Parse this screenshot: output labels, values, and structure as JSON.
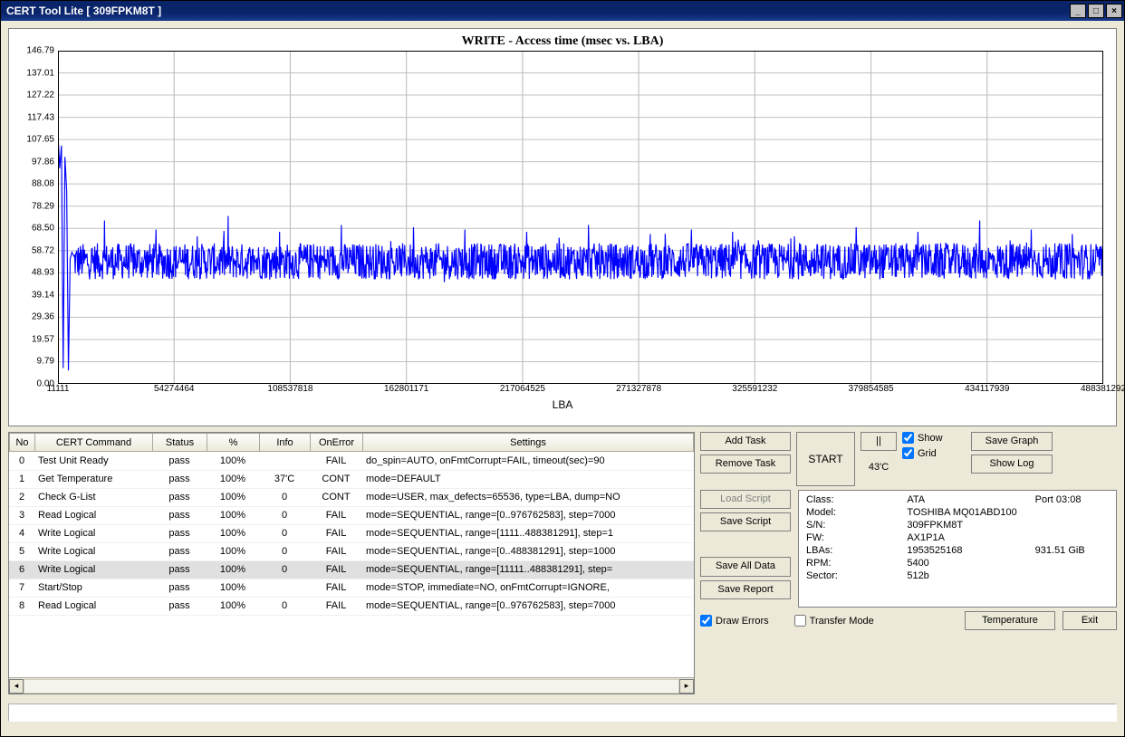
{
  "window": {
    "title": "CERT Tool Lite [ 309FPKM8T ]"
  },
  "chart": {
    "type": "scatter-line",
    "title": "WRITE - Access time (msec vs. LBA)",
    "xaxis_label": "LBA",
    "yaxis_label": "",
    "title_fontsize": 14,
    "label_fontsize": 11,
    "background_color": "#ffffff",
    "grid_color": "#c0c0c0",
    "series_color": "#0000ff",
    "line_width": 1,
    "ylim": [
      0,
      146.79
    ],
    "y_ticks": [
      0.0,
      9.79,
      19.57,
      29.36,
      39.14,
      48.93,
      58.72,
      68.5,
      78.29,
      88.08,
      97.86,
      107.65,
      117.43,
      127.22,
      137.01,
      146.79
    ],
    "x_ticks": [
      11111,
      54274464,
      108537818,
      162801171,
      217064525,
      271327878,
      325591232,
      379854585,
      434117939,
      488381292
    ],
    "xlim": [
      11111,
      488381292
    ],
    "baseline_mean": 54,
    "baseline_jitter": 8,
    "initial_spikes": [
      110,
      95,
      105,
      7,
      100,
      85,
      6,
      55,
      58
    ],
    "spike_positions_pct": [
      3,
      8,
      12,
      15,
      20,
      26,
      33,
      38,
      44,
      50,
      56,
      60,
      64,
      70,
      76,
      82,
      88,
      93,
      97
    ],
    "spike_heights": [
      72,
      68,
      65,
      74,
      67,
      70,
      69,
      68,
      67,
      70,
      66,
      68,
      67,
      65,
      69,
      67,
      72,
      68,
      66
    ]
  },
  "table": {
    "columns": [
      "No",
      "CERT Command",
      "Status",
      "%",
      "Info",
      "OnError",
      "Settings"
    ],
    "selected_row": 6,
    "rows": [
      [
        "0",
        "Test Unit Ready",
        "pass",
        "100%",
        "",
        "FAIL",
        "do_spin=AUTO, onFmtCorrupt=FAIL, timeout(sec)=90"
      ],
      [
        "1",
        "Get Temperature",
        "pass",
        "100%",
        "37'C",
        "CONT",
        "mode=DEFAULT"
      ],
      [
        "2",
        "Check G-List",
        "pass",
        "100%",
        "0",
        "CONT",
        "mode=USER, max_defects=65536, type=LBA, dump=NO"
      ],
      [
        "3",
        "Read Logical",
        "pass",
        "100%",
        "0",
        "FAIL",
        "mode=SEQUENTIAL, range=[0..976762583], step=7000"
      ],
      [
        "4",
        "Write Logical",
        "pass",
        "100%",
        "0",
        "FAIL",
        "mode=SEQUENTIAL, range=[1111..488381291], step=1"
      ],
      [
        "5",
        "Write Logical",
        "pass",
        "100%",
        "0",
        "FAIL",
        "mode=SEQUENTIAL, range=[0..488381291], step=1000"
      ],
      [
        "6",
        "Write Logical",
        "pass",
        "100%",
        "0",
        "FAIL",
        "mode=SEQUENTIAL, range=[11111..488381291], step="
      ],
      [
        "7",
        "Start/Stop",
        "pass",
        "100%",
        "",
        "FAIL",
        "mode=STOP, immediate=NO, onFmtCorrupt=IGNORE, "
      ],
      [
        "8",
        "Read Logical",
        "pass",
        "100%",
        "0",
        "FAIL",
        "mode=SEQUENTIAL, range=[0..976762583], step=7000"
      ]
    ]
  },
  "buttons": {
    "add_task": "Add Task",
    "remove_task": "Remove Task",
    "start": "START",
    "pause": "||",
    "temp_display": "43'C",
    "show": "Show",
    "grid": "Grid",
    "save_graph": "Save Graph",
    "show_log": "Show Log",
    "load_script": "Load Script",
    "save_script": "Save Script",
    "save_all_data": "Save All Data",
    "save_report": "Save Report",
    "draw_errors": "Draw Errors",
    "transfer_mode": "Transfer Mode",
    "temperature": "Temperature",
    "exit": "Exit"
  },
  "checkboxes": {
    "show": true,
    "grid": true,
    "draw_errors": true,
    "transfer_mode": false
  },
  "device_info": {
    "class_label": "Class:",
    "class_value": "ATA",
    "port_label": "Port",
    "port_value": "03:08",
    "model_label": "Model:",
    "model_value": "TOSHIBA MQ01ABD100",
    "sn_label": "S/N:",
    "sn_value": "309FPKM8T",
    "fw_label": "FW:",
    "fw_value": "AX1P1A",
    "lbas_label": "LBAs:",
    "lbas_value": "1953525168",
    "capacity": "931.51 GiB",
    "rpm_label": "RPM:",
    "rpm_value": "5400",
    "sector_label": "Sector:",
    "sector_value": "512b"
  }
}
